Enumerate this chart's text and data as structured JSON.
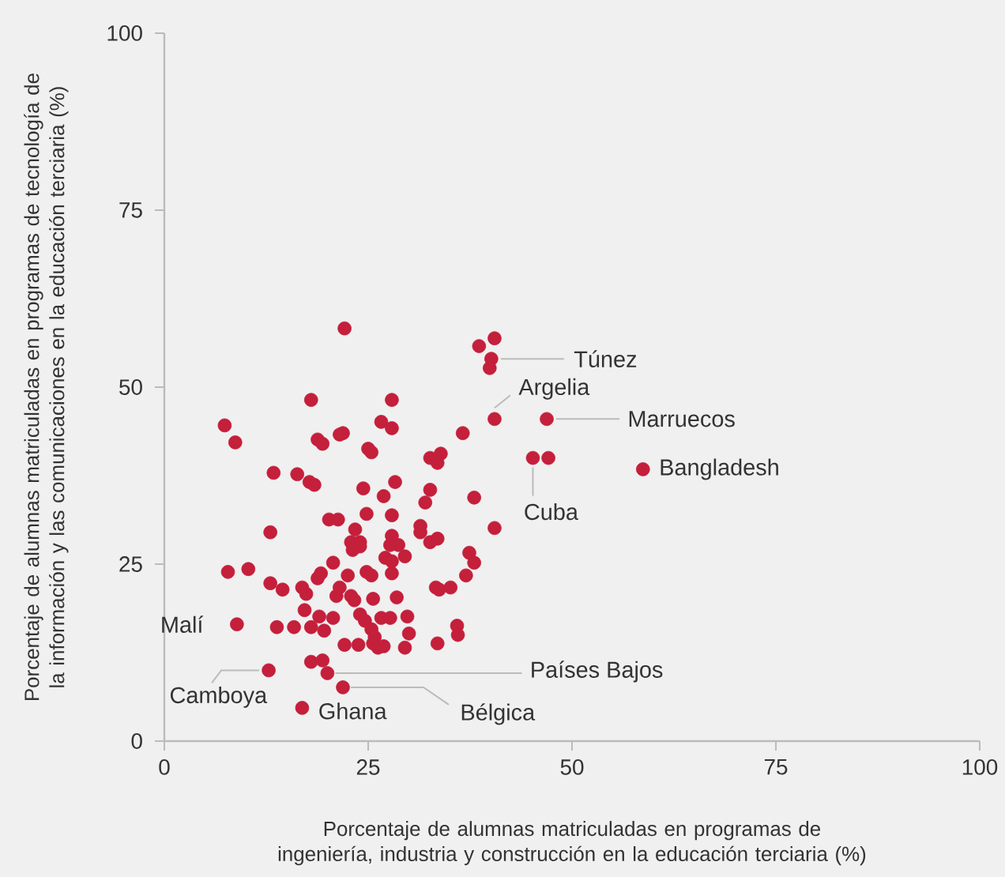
{
  "chart_data": {
    "type": "scatter",
    "xlabel": "Porcentaje de alumnas matriculadas en programas de ingeniería, industria y construcción en la educación terciaria (%)",
    "ylabel": "Porcentaje de alumnas matriculadas en programas de tecnología de la información y las comunicaciones en la educación terciaria (%)",
    "xlim": [
      0,
      100
    ],
    "ylim": [
      0,
      100
    ],
    "xticks": [
      0,
      25,
      50,
      75,
      100
    ],
    "yticks": [
      0,
      25,
      50,
      75,
      100
    ],
    "grid": false,
    "marker": "circle",
    "series": [
      {
        "color": "#c41f3b",
        "x": [
          22.1,
          18.0,
          27.9,
          7.4,
          8.7,
          18.8,
          19.4,
          21.5,
          21.9,
          26.6,
          27.9,
          25.0,
          25.4,
          36.6,
          40.5,
          13.4,
          16.3,
          17.8,
          18.4,
          24.4,
          28.3,
          26.9,
          32.6,
          33.9,
          33.5,
          32.6,
          32.0,
          38.0,
          24.8,
          27.9,
          20.2,
          21.3,
          13.0,
          23.4,
          40.5,
          31.4,
          31.4,
          32.6,
          33.5,
          22.9,
          24.0,
          23.1,
          24.0,
          27.9,
          27.7,
          28.7,
          27.1,
          27.9,
          29.5,
          20.7,
          37.4,
          38.0,
          7.8,
          10.3,
          13.0,
          14.5,
          16.9,
          17.4,
          18.8,
          19.2,
          22.5,
          24.8,
          25.4,
          27.9,
          37.0,
          33.3,
          33.7,
          35.1,
          21.5,
          21.1,
          22.9,
          23.3,
          25.6,
          28.5,
          17.2,
          19.0,
          20.7,
          24.0,
          24.6,
          26.6,
          27.7,
          29.8,
          8.9,
          13.8,
          15.9,
          18.0,
          19.6,
          25.4,
          25.8,
          30.0,
          35.9,
          36.0,
          22.1,
          23.8,
          25.6,
          26.2,
          26.9,
          29.5,
          33.5,
          18.0,
          19.4,
          20.0,
          21.9,
          12.8,
          16.9,
          38.6,
          40.5,
          40.1,
          39.9,
          46.9,
          45.2,
          47.1,
          58.7
        ],
        "values": [
          58.3,
          48.2,
          48.2,
          44.6,
          42.2,
          42.6,
          42.0,
          43.3,
          43.5,
          45.1,
          44.2,
          41.3,
          40.8,
          43.5,
          45.5,
          37.9,
          37.7,
          36.6,
          36.2,
          35.7,
          36.6,
          34.6,
          40.0,
          40.6,
          39.3,
          35.5,
          33.7,
          34.4,
          32.1,
          31.9,
          31.3,
          31.3,
          29.5,
          29.9,
          30.1,
          30.4,
          29.5,
          28.1,
          28.6,
          28.1,
          28.1,
          27.0,
          27.5,
          29.0,
          27.7,
          27.7,
          25.9,
          25.4,
          26.1,
          25.2,
          26.6,
          25.2,
          23.9,
          24.3,
          22.3,
          21.4,
          21.7,
          20.8,
          23.0,
          23.7,
          23.4,
          23.9,
          23.4,
          23.7,
          23.4,
          21.7,
          21.4,
          21.7,
          21.7,
          20.5,
          20.5,
          19.9,
          20.1,
          20.3,
          18.5,
          17.6,
          17.4,
          17.9,
          17.0,
          17.4,
          17.4,
          17.6,
          16.5,
          16.1,
          16.1,
          16.1,
          15.6,
          15.8,
          14.7,
          15.2,
          16.3,
          15.0,
          13.6,
          13.6,
          13.8,
          13.2,
          13.4,
          13.2,
          13.8,
          11.2,
          11.4,
          9.6,
          7.6,
          10.0,
          4.7,
          55.8,
          56.9,
          54.0,
          52.7,
          45.5,
          40.0,
          40.0,
          38.4
        ]
      }
    ],
    "annotations": [
      {
        "text": "Túnez",
        "x": 40.1,
        "y": 54.0
      },
      {
        "text": "Argelia",
        "x": 40.5,
        "y": 45.5
      },
      {
        "text": "Marruecos",
        "x": 46.9,
        "y": 45.5
      },
      {
        "text": "Bangladesh",
        "x": 58.7,
        "y": 38.4
      },
      {
        "text": "Cuba",
        "x": 45.2,
        "y": 40.0
      },
      {
        "text": "Malí",
        "x": 8.9,
        "y": 16.5
      },
      {
        "text": "Camboya",
        "x": 12.8,
        "y": 10.0
      },
      {
        "text": "Ghana",
        "x": 16.9,
        "y": 4.7
      },
      {
        "text": "Países Bajos",
        "x": 20.0,
        "y": 9.6
      },
      {
        "text": "Bélgica",
        "x": 21.9,
        "y": 7.6
      }
    ]
  }
}
